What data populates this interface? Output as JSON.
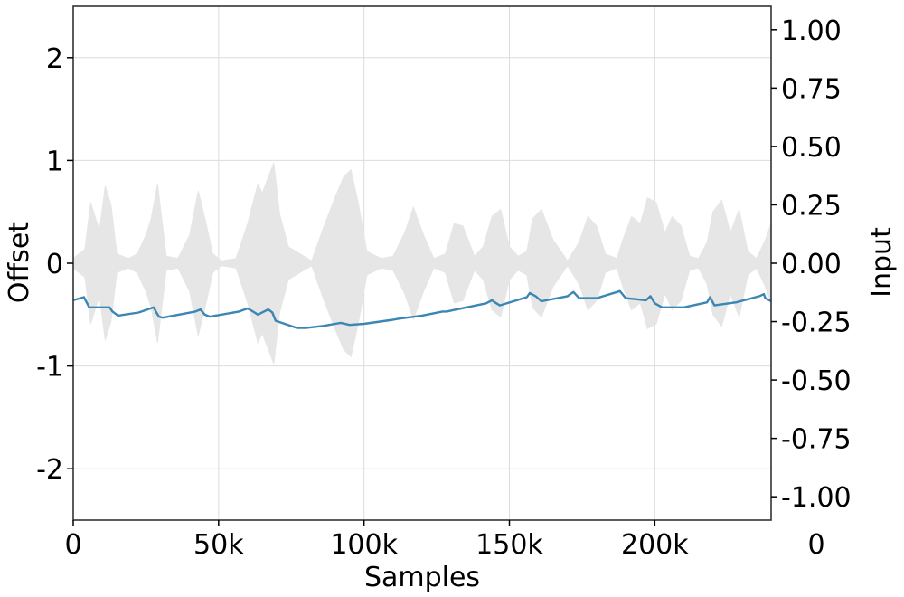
{
  "chart_data": {
    "type": "line",
    "xlabel": "Samples",
    "ylabel": "Offset",
    "y2label": "Input",
    "xlim": [
      0,
      240000
    ],
    "ylim": [
      -2.5,
      2.5
    ],
    "y2lim": [
      -1.1,
      1.1
    ],
    "grid": true,
    "x_ticks": [
      {
        "value": 0,
        "label": "0"
      },
      {
        "value": 50000,
        "label": "50k"
      },
      {
        "value": 100000,
        "label": "100k"
      },
      {
        "value": 150000,
        "label": "150k"
      },
      {
        "value": 200000,
        "label": "200k"
      }
    ],
    "x_extra_label": "0",
    "y_ticks": [
      {
        "value": 2,
        "label": "2"
      },
      {
        "value": 1,
        "label": "1"
      },
      {
        "value": 0,
        "label": "0"
      },
      {
        "value": -1,
        "label": "-1"
      },
      {
        "value": -2,
        "label": "-2"
      }
    ],
    "y2_ticks": [
      {
        "value": 1.0,
        "label": "1.00"
      },
      {
        "value": 0.75,
        "label": "0.75"
      },
      {
        "value": 0.5,
        "label": "0.50"
      },
      {
        "value": 0.25,
        "label": "0.25"
      },
      {
        "value": 0.0,
        "label": "0.00"
      },
      {
        "value": -0.25,
        "label": "-0.25"
      },
      {
        "value": -0.5,
        "label": "-0.50"
      },
      {
        "value": -0.75,
        "label": "-0.75"
      },
      {
        "value": -1.0,
        "label": "-1.00"
      }
    ],
    "colors": {
      "offset": "#3a86b4",
      "input": "#e6e6e6",
      "grid": "#dcdcdc",
      "frame": "#333333"
    },
    "series": [
      {
        "axis": "left",
        "x": [
          0,
          3700,
          4600,
          5500,
          12500,
          13500,
          15400,
          22500,
          27700,
          28600,
          29500,
          30800,
          42000,
          43800,
          45200,
          47000,
          57000,
          60000,
          61800,
          63500,
          66300,
          67100,
          68500,
          69600,
          77000,
          80000,
          86000,
          92000,
          95000,
          100000,
          110000,
          112000,
          120000,
          127000,
          128500,
          130000,
          142000,
          144000,
          145000,
          146700,
          156000,
          157000,
          159000,
          161000,
          170000,
          172000,
          174000,
          180000,
          187000,
          188000,
          190000,
          197000,
          198500,
          200000,
          202500,
          210000,
          218000,
          219000,
          220500,
          228000,
          236000,
          237500,
          238000,
          240000
        ],
        "y": [
          -0.36,
          -0.33,
          -0.38,
          -0.43,
          -0.43,
          -0.47,
          -0.51,
          -0.48,
          -0.43,
          -0.48,
          -0.52,
          -0.53,
          -0.47,
          -0.45,
          -0.5,
          -0.52,
          -0.47,
          -0.44,
          -0.47,
          -0.5,
          -0.46,
          -0.45,
          -0.48,
          -0.56,
          -0.63,
          -0.63,
          -0.61,
          -0.58,
          -0.6,
          -0.59,
          -0.55,
          -0.54,
          -0.51,
          -0.47,
          -0.47,
          -0.46,
          -0.39,
          -0.36,
          -0.38,
          -0.41,
          -0.33,
          -0.29,
          -0.32,
          -0.37,
          -0.32,
          -0.28,
          -0.34,
          -0.34,
          -0.28,
          -0.27,
          -0.34,
          -0.36,
          -0.32,
          -0.39,
          -0.43,
          -0.43,
          -0.38,
          -0.33,
          -0.41,
          -0.38,
          -0.32,
          -0.3,
          -0.34,
          -0.37
        ]
      },
      {
        "axis": "right",
        "x": [
          0,
          4000,
          6000,
          9000,
          11000,
          13000,
          15000,
          19000,
          22000,
          25000,
          26800,
          29000,
          32000,
          36000,
          40000,
          43000,
          45500,
          48000,
          51000,
          56000,
          60000,
          63500,
          65000,
          69000,
          71000,
          74000,
          78000,
          82000,
          86000,
          90000,
          93000,
          95500,
          98000,
          101000,
          106000,
          110000,
          114000,
          117000,
          120500,
          124000,
          128000,
          131000,
          134000,
          138000,
          141000,
          144000,
          147000,
          150000,
          153000,
          156000,
          158000,
          161000,
          165000,
          170000,
          174000,
          177000,
          180000,
          183000,
          187000,
          189000,
          192000,
          195000,
          197500,
          200500,
          203500,
          206000,
          209000,
          212000,
          215000,
          218000,
          220000,
          223000,
          226000,
          229000,
          232000,
          235000,
          238000,
          240000
        ],
        "y": [
          0.02,
          0.06,
          0.26,
          0.14,
          0.33,
          0.25,
          0.04,
          0.02,
          0.04,
          0.12,
          0.19,
          0.34,
          0.03,
          0.02,
          0.12,
          0.31,
          0.18,
          0.04,
          0.01,
          0.02,
          0.17,
          0.34,
          0.3,
          0.43,
          0.21,
          0.07,
          0.04,
          0.01,
          0.15,
          0.28,
          0.37,
          0.4,
          0.26,
          0.05,
          0.02,
          0.03,
          0.13,
          0.24,
          0.12,
          0.02,
          0.04,
          0.17,
          0.16,
          0.03,
          0.07,
          0.2,
          0.23,
          0.07,
          0.03,
          0.05,
          0.19,
          0.23,
          0.1,
          0.01,
          0.09,
          0.2,
          0.16,
          0.04,
          0.02,
          0.1,
          0.2,
          0.17,
          0.28,
          0.26,
          0.13,
          0.2,
          0.16,
          0.03,
          0.02,
          0.09,
          0.22,
          0.27,
          0.13,
          0.23,
          0.05,
          0.02,
          0.1,
          0.17
        ]
      }
    ]
  }
}
